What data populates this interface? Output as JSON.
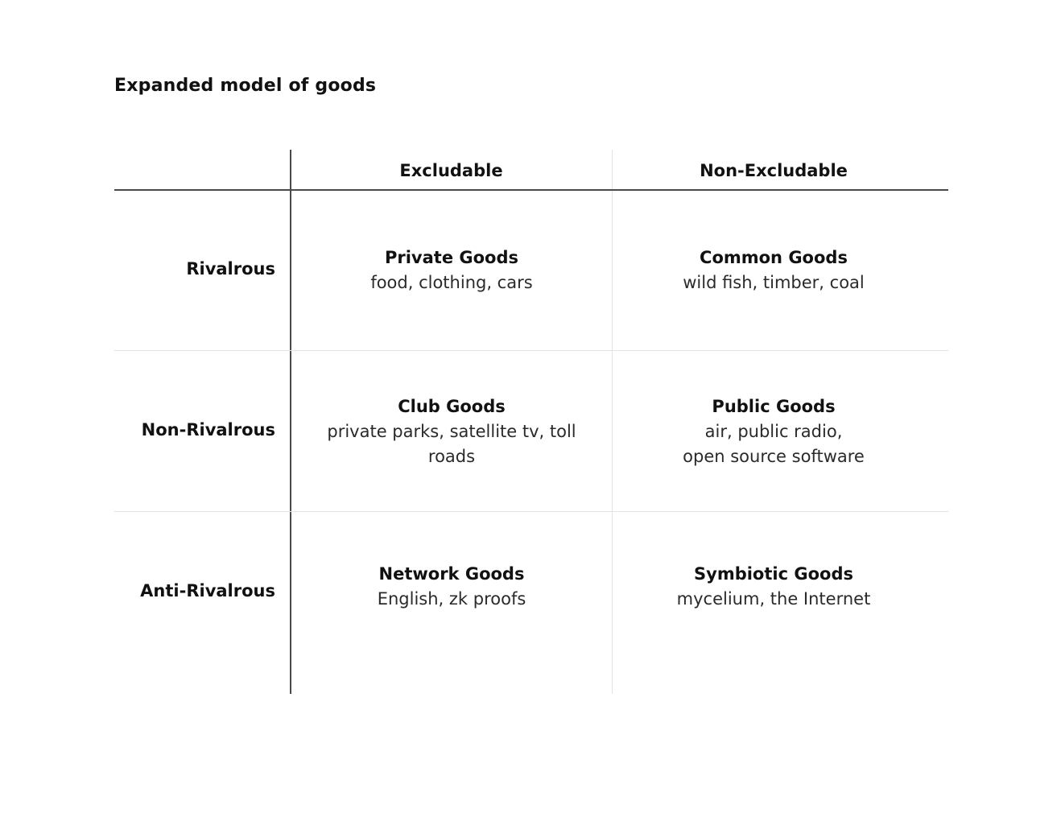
{
  "title": "Expanded model of goods",
  "columns": {
    "excludable": "Excludable",
    "non_excludable": "Non-Excludable"
  },
  "rows": {
    "rivalrous": "Rivalrous",
    "non_rivalrous": "Non-Rivalrous",
    "anti_rivalrous": "Anti-Rivalrous"
  },
  "cells": {
    "private": {
      "name": "Private Goods",
      "examples": "food, clothing, cars"
    },
    "common": {
      "name": "Common Goods",
      "examples": "wild fish, timber, coal"
    },
    "club": {
      "name": "Club Goods",
      "examples": "private parks, satellite tv, toll\nroads"
    },
    "public": {
      "name": "Public Goods",
      "examples": "air, public radio,\nopen source software"
    },
    "network": {
      "name": "Network Goods",
      "examples": "English, zk proofs"
    },
    "symbiotic": {
      "name": "Symbiotic Goods",
      "examples": "mycelium, the Internet"
    }
  }
}
